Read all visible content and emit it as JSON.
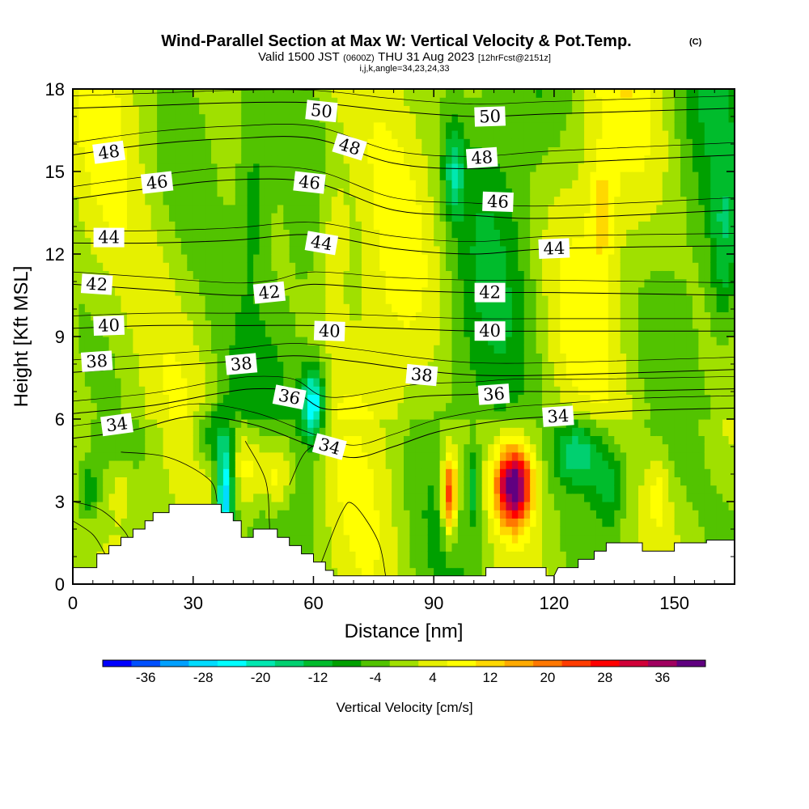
{
  "header": {
    "title": "Wind-Parallel Section at Max W: Vertical Velocity & Pot.Temp.",
    "copyright": "(C)",
    "valid_prefix": "Valid 1500 JST",
    "valid_zulu": "(0600Z)",
    "valid_date": "THU 31 Aug 2023",
    "forecast": "[12hrFcst@2151z]",
    "grid_info": "i,j,k,angle=34,23,24,33"
  },
  "chart_data": {
    "type": "heatmap",
    "xlabel": "Distance [nm]",
    "ylabel": "Height [Kft MSL]",
    "xlim": [
      0,
      165
    ],
    "ylim": [
      0,
      18
    ],
    "x_ticks": [
      "0",
      "30",
      "60",
      "90",
      "120",
      "150"
    ],
    "y_ticks": [
      "0",
      "3",
      "6",
      "9",
      "12",
      "15",
      "18"
    ],
    "colorbar": {
      "label": "Vertical Velocity [cm/s]",
      "tick_labels": [
        "-36",
        "-28",
        "-20",
        "-12",
        "-4",
        "4",
        "12",
        "20",
        "28",
        "36"
      ],
      "levels": [
        -40,
        -36,
        -32,
        -28,
        -24,
        -20,
        -16,
        -12,
        -8,
        -4,
        0,
        4,
        8,
        12,
        16,
        20,
        24,
        28,
        32,
        36,
        40
      ],
      "colors": [
        "#0000ff",
        "#0050ff",
        "#00a0ff",
        "#00dcff",
        "#00ffff",
        "#00e8b0",
        "#00d070",
        "#00bc2c",
        "#00a000",
        "#52c300",
        "#a0e000",
        "#e6f000",
        "#ffff00",
        "#ffd800",
        "#ffaa00",
        "#ff7800",
        "#ff3c00",
        "#ff0000",
        "#d00038",
        "#a00060",
        "#600080"
      ]
    },
    "terrain": [
      [
        0,
        0.6
      ],
      [
        6,
        0.6
      ],
      [
        6,
        1.1
      ],
      [
        9,
        1.1
      ],
      [
        9,
        1.4
      ],
      [
        12,
        1.4
      ],
      [
        12,
        1.7
      ],
      [
        15,
        1.7
      ],
      [
        15,
        2.0
      ],
      [
        18,
        2.0
      ],
      [
        18,
        2.3
      ],
      [
        20,
        2.3
      ],
      [
        20,
        2.6
      ],
      [
        24,
        2.6
      ],
      [
        24,
        2.9
      ],
      [
        37,
        2.9
      ],
      [
        37,
        2.6
      ],
      [
        40,
        2.6
      ],
      [
        40,
        2.3
      ],
      [
        42,
        2.3
      ],
      [
        42,
        1.7
      ],
      [
        45,
        1.7
      ],
      [
        45,
        2.0
      ],
      [
        51,
        2.0
      ],
      [
        51,
        1.7
      ],
      [
        54,
        1.7
      ],
      [
        54,
        1.4
      ],
      [
        57,
        1.4
      ],
      [
        57,
        1.1
      ],
      [
        60,
        1.1
      ],
      [
        60,
        0.8
      ],
      [
        63,
        0.8
      ],
      [
        63,
        0.5
      ],
      [
        65,
        0.5
      ],
      [
        65,
        0.3
      ],
      [
        68,
        0.3
      ],
      [
        103,
        0.3
      ],
      [
        103,
        0.6
      ],
      [
        118,
        0.6
      ],
      [
        118,
        0.3
      ],
      [
        120,
        0.3
      ],
      [
        121,
        0.6
      ],
      [
        126,
        0.6
      ],
      [
        126,
        0.9
      ],
      [
        130,
        0.9
      ],
      [
        130,
        1.2
      ],
      [
        133,
        1.2
      ],
      [
        133,
        1.5
      ],
      [
        142,
        1.5
      ],
      [
        142,
        1.2
      ],
      [
        150,
        1.2
      ],
      [
        150,
        1.5
      ],
      [
        158,
        1.5
      ],
      [
        158,
        1.6
      ],
      [
        165,
        1.6
      ],
      [
        165,
        0
      ],
      [
        0,
        0
      ]
    ],
    "w_field": [
      {
        "x": 110,
        "y": 3.6,
        "amp": 42,
        "sx": 4.5,
        "sy": 1.4
      },
      {
        "x": 94,
        "y": 3.3,
        "amp": 30,
        "sx": 1.8,
        "sy": 1.5
      },
      {
        "x": 100,
        "y": 3.6,
        "amp": -12,
        "sx": 1.2,
        "sy": 1.4
      },
      {
        "x": 44,
        "y": 4.3,
        "amp": 12,
        "sx": 4.5,
        "sy": 1.5
      },
      {
        "x": 51,
        "y": 4.0,
        "amp": 14,
        "sx": 4.0,
        "sy": 1.5
      },
      {
        "x": 38,
        "y": 3.2,
        "amp": -30,
        "sx": 2.2,
        "sy": 2.2
      },
      {
        "x": 60,
        "y": 6.6,
        "amp": -26,
        "sx": 3.0,
        "sy": 1.4
      },
      {
        "x": 34,
        "y": 5.4,
        "amp": -12,
        "sx": 4.0,
        "sy": 1.0
      },
      {
        "x": 4,
        "y": 3.4,
        "amp": -10,
        "sx": 2.5,
        "sy": 1.0
      },
      {
        "x": 12,
        "y": 3.4,
        "amp": 6,
        "sx": 3.0,
        "sy": 1.0
      },
      {
        "x": 126,
        "y": 4.8,
        "amp": -18,
        "sx": 6.0,
        "sy": 1.3
      },
      {
        "x": 134,
        "y": 3.6,
        "amp": -12,
        "sx": 4.0,
        "sy": 1.5
      },
      {
        "x": 146,
        "y": 3.4,
        "amp": 7,
        "sx": 3.0,
        "sy": 1.5
      },
      {
        "x": 95,
        "y": 15.0,
        "amp": -14,
        "sx": 2.5,
        "sy": 1.6
      },
      {
        "x": 65,
        "y": 12.5,
        "amp": 8,
        "sx": 4.0,
        "sy": 3.0
      },
      {
        "x": 132,
        "y": 13.5,
        "amp": 9,
        "sx": 3.0,
        "sy": 2.0
      },
      {
        "x": 45,
        "y": 14.0,
        "amp": -8,
        "sx": 4.0,
        "sy": 3.0
      },
      {
        "x": 162,
        "y": 12.0,
        "amp": -9,
        "sx": 3.0,
        "sy": 3.0
      }
    ],
    "theta_levels": [
      {
        "value": 34,
        "pts": [
          [
            0,
            5.3
          ],
          [
            15,
            5.6
          ],
          [
            30,
            6.1
          ],
          [
            45,
            5.8
          ],
          [
            60,
            5.0
          ],
          [
            70,
            4.6
          ],
          [
            80,
            5.0
          ],
          [
            90,
            5.5
          ],
          [
            100,
            5.8
          ],
          [
            110,
            6.0
          ],
          [
            120,
            6.1
          ],
          [
            140,
            6.3
          ],
          [
            165,
            6.4
          ]
        ],
        "labels": [
          [
            11,
            5.8
          ],
          [
            64,
            5.0
          ],
          [
            121,
            6.1
          ]
        ]
      },
      {
        "value": 36,
        "pts": [
          [
            0,
            6.2
          ],
          [
            20,
            6.5
          ],
          [
            35,
            6.9
          ],
          [
            45,
            7.1
          ],
          [
            55,
            7.0
          ],
          [
            62,
            6.4
          ],
          [
            70,
            6.4
          ],
          [
            85,
            6.8
          ],
          [
            100,
            6.9
          ],
          [
            110,
            7.0
          ],
          [
            130,
            7.0
          ],
          [
            165,
            7.1
          ]
        ],
        "labels": [
          [
            54,
            6.8
          ],
          [
            105,
            6.9
          ]
        ]
      },
      {
        "value": 38,
        "pts": [
          [
            0,
            7.7
          ],
          [
            20,
            7.9
          ],
          [
            40,
            8.1
          ],
          [
            55,
            8.3
          ],
          [
            70,
            8.1
          ],
          [
            85,
            7.8
          ],
          [
            100,
            7.6
          ],
          [
            120,
            7.6
          ],
          [
            165,
            7.8
          ]
        ],
        "labels": [
          [
            6,
            8.1
          ],
          [
            42,
            8.0
          ],
          [
            87,
            7.6
          ]
        ]
      },
      {
        "value": 40,
        "pts": [
          [
            0,
            9.3
          ],
          [
            20,
            9.4
          ],
          [
            40,
            9.4
          ],
          [
            60,
            9.4
          ],
          [
            80,
            9.3
          ],
          [
            100,
            9.2
          ],
          [
            120,
            9.2
          ],
          [
            165,
            9.2
          ]
        ],
        "labels": [
          [
            9,
            9.4
          ],
          [
            64,
            9.2
          ],
          [
            104,
            9.2
          ]
        ]
      },
      {
        "value": 42,
        "pts": [
          [
            0,
            10.9
          ],
          [
            20,
            10.7
          ],
          [
            40,
            10.5
          ],
          [
            50,
            10.6
          ],
          [
            60,
            10.9
          ],
          [
            80,
            10.7
          ],
          [
            100,
            10.6
          ],
          [
            120,
            10.6
          ],
          [
            165,
            10.5
          ]
        ],
        "labels": [
          [
            6,
            10.9
          ],
          [
            49,
            10.6
          ],
          [
            104,
            10.6
          ]
        ]
      },
      {
        "value": 44,
        "pts": [
          [
            0,
            12.4
          ],
          [
            20,
            12.4
          ],
          [
            40,
            12.5
          ],
          [
            60,
            12.7
          ],
          [
            80,
            12.2
          ],
          [
            100,
            12.0
          ],
          [
            120,
            12.2
          ],
          [
            165,
            12.3
          ]
        ],
        "labels": [
          [
            9,
            12.6
          ],
          [
            62,
            12.4
          ],
          [
            120,
            12.2
          ]
        ]
      },
      {
        "value": 46,
        "pts": [
          [
            0,
            14.0
          ],
          [
            20,
            14.4
          ],
          [
            40,
            14.7
          ],
          [
            60,
            14.6
          ],
          [
            80,
            13.6
          ],
          [
            100,
            13.4
          ],
          [
            120,
            13.3
          ],
          [
            165,
            13.6
          ]
        ],
        "labels": [
          [
            21,
            14.6
          ],
          [
            59,
            14.6
          ],
          [
            106,
            13.9
          ]
        ]
      },
      {
        "value": 48,
        "pts": [
          [
            0,
            15.6
          ],
          [
            20,
            16.0
          ],
          [
            40,
            16.2
          ],
          [
            60,
            16.2
          ],
          [
            80,
            15.3
          ],
          [
            100,
            15.1
          ],
          [
            120,
            15.3
          ],
          [
            165,
            15.6
          ]
        ],
        "labels": [
          [
            9,
            15.7
          ],
          [
            69,
            15.9
          ],
          [
            102,
            15.5
          ]
        ]
      },
      {
        "value": 50,
        "pts": [
          [
            0,
            17.3
          ],
          [
            20,
            17.4
          ],
          [
            40,
            17.5
          ],
          [
            60,
            17.5
          ],
          [
            80,
            17.2
          ],
          [
            100,
            17.0
          ],
          [
            120,
            17.1
          ],
          [
            165,
            17.3
          ]
        ],
        "labels": [
          [
            62,
            17.2
          ],
          [
            104,
            17.0
          ]
        ]
      }
    ]
  }
}
